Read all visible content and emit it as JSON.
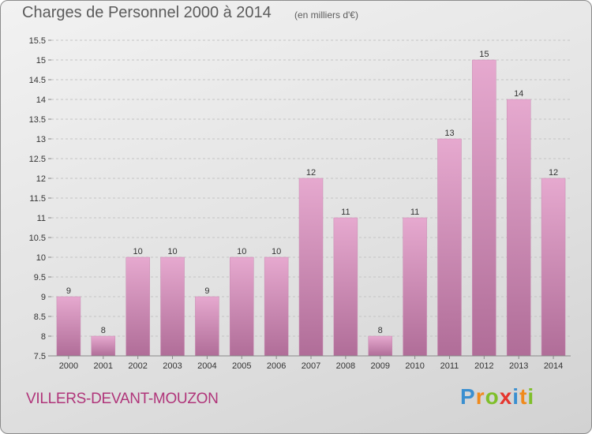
{
  "title": "Charges de Personnel 2000 à 2014",
  "subtitle": "(en milliers d'€)",
  "location": "VILLERS-DEVANT-MOUZON",
  "brand": {
    "text": "Proxiti",
    "letters": [
      {
        "char": "P",
        "color": "#3a8fd0"
      },
      {
        "char": "r",
        "color": "#f08a1c"
      },
      {
        "char": "o",
        "color": "#7fbf2a"
      },
      {
        "char": "x",
        "color": "#e5362f"
      },
      {
        "char": "i",
        "color": "#3a8fd0"
      },
      {
        "char": "t",
        "color": "#f08a1c"
      },
      {
        "char": "i",
        "color": "#7fbf2a"
      }
    ]
  },
  "colors": {
    "bar_top": "#e6a9cf",
    "bar_bottom": "#b06d98",
    "grid": "#c4c4c4",
    "axis_text": "#333333"
  },
  "chart_data": {
    "type": "bar",
    "categories": [
      "2000",
      "2001",
      "2002",
      "2003",
      "2004",
      "2005",
      "2006",
      "2007",
      "2008",
      "2009",
      "2010",
      "2011",
      "2012",
      "2013",
      "2014"
    ],
    "values": [
      9,
      8,
      10,
      10,
      9,
      10,
      10,
      12,
      11,
      8,
      11,
      13,
      15,
      14,
      12
    ],
    "value_labels": [
      "9",
      "8",
      "10",
      "10",
      "9",
      "10",
      "10",
      "12",
      "11",
      "8",
      "11",
      "13",
      "15",
      "14",
      "12"
    ],
    "ylim": [
      7.5,
      15.5
    ],
    "yticks": [
      7.5,
      8,
      8.5,
      9,
      9.5,
      10,
      10.5,
      11,
      11.5,
      12,
      12.5,
      13,
      13.5,
      14,
      14.5,
      15,
      15.5
    ],
    "ytick_labels": [
      "7.5",
      "8",
      "8.5",
      "9",
      "9.5",
      "10",
      "10.5",
      "11",
      "11.5",
      "12",
      "12.5",
      "13",
      "13.5",
      "14",
      "14.5",
      "15",
      "15.5"
    ],
    "grid": true,
    "legend": "none"
  }
}
